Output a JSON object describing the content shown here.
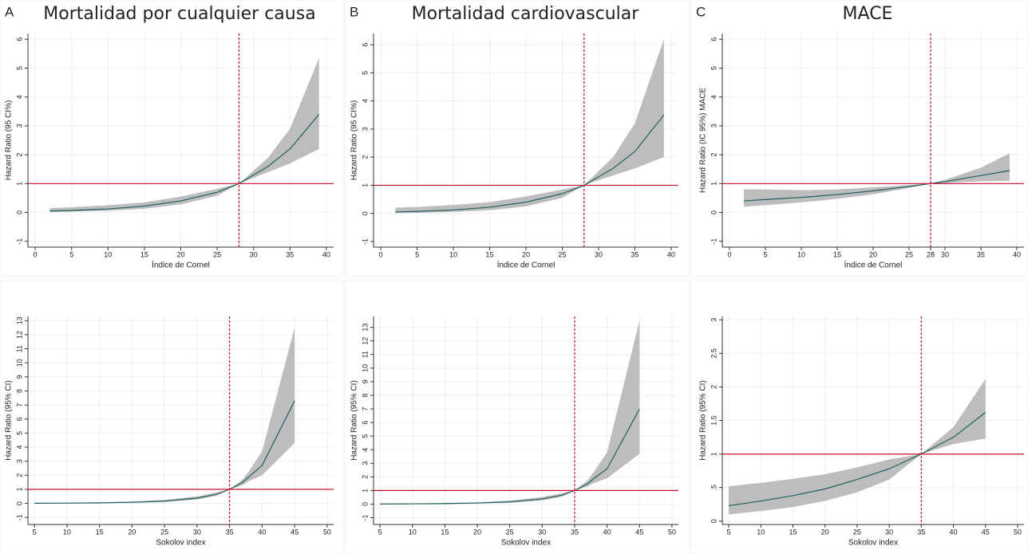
{
  "chart_data": [
    {
      "type": "line",
      "panel_label": "A",
      "title": "Mortalidad por cualquier causa",
      "x_label": "Índice de Cornel",
      "y_label": "Hazard Ratio (95 CI%)",
      "xlim": [
        -1,
        41
      ],
      "ylim": [
        -1.2,
        6.2
      ],
      "xticks": [
        0,
        5,
        10,
        15,
        20,
        25,
        30,
        35,
        40
      ],
      "yticks": [
        -1,
        0,
        1,
        2,
        3,
        4,
        5,
        6
      ],
      "grid": true,
      "hline": 1,
      "vline": 28,
      "ref_color": "#c8102e",
      "x": [
        2,
        5,
        10,
        15,
        20,
        25,
        28,
        30,
        32,
        35,
        39
      ],
      "series": [
        {
          "color": "#1f5f5b",
          "band_color": "#bdbdbd",
          "values": [
            0.05,
            0.07,
            0.12,
            0.22,
            0.4,
            0.7,
            1,
            1.3,
            1.6,
            2.2,
            3.4
          ],
          "lower": [
            0.02,
            0.03,
            0.06,
            0.13,
            0.28,
            0.58,
            1,
            1.2,
            1.4,
            1.7,
            2.2
          ],
          "upper": [
            0.15,
            0.18,
            0.25,
            0.35,
            0.55,
            0.82,
            1,
            1.45,
            1.9,
            2.9,
            5.35
          ]
        }
      ]
    },
    {
      "type": "line",
      "panel_label": "B",
      "title": "Mortalidad cardiovascular",
      "x_label": "Índice de Cornel",
      "y_label": "Hazard Ratio (95 CI%)",
      "xlim": [
        -1,
        41
      ],
      "ylim": [
        -1.2,
        6.4
      ],
      "xticks": [
        0,
        5,
        10,
        15,
        20,
        25,
        30,
        35,
        40
      ],
      "yticks": [
        -1,
        0,
        1,
        2,
        3,
        4,
        5,
        6
      ],
      "grid": true,
      "hline": 1,
      "vline": 28,
      "ref_color": "#c8102e",
      "x": [
        2,
        5,
        10,
        15,
        20,
        25,
        28,
        30,
        32,
        35,
        39
      ],
      "series": [
        {
          "color": "#1f5f5b",
          "band_color": "#bdbdbd",
          "values": [
            0.05,
            0.07,
            0.12,
            0.22,
            0.4,
            0.7,
            1,
            1.3,
            1.6,
            2.2,
            3.5
          ],
          "lower": [
            0.01,
            0.02,
            0.05,
            0.11,
            0.25,
            0.55,
            1,
            1.18,
            1.35,
            1.6,
            2.0
          ],
          "upper": [
            0.2,
            0.23,
            0.3,
            0.4,
            0.6,
            0.85,
            1,
            1.5,
            2.0,
            3.2,
            6.2
          ]
        }
      ]
    },
    {
      "type": "line",
      "panel_label": "C",
      "title": "MACE",
      "x_label": "Índice de Cornel",
      "y_label": "Hazard Ratio (IC 95%) MACE",
      "xlim": [
        -1,
        41
      ],
      "ylim": [
        -1.2,
        6.2
      ],
      "xticks": [
        0,
        5,
        10,
        15,
        20,
        25,
        28,
        30,
        35,
        40
      ],
      "yticks": [
        -1,
        0,
        1,
        2,
        3,
        4,
        5,
        6
      ],
      "grid": true,
      "hline": 1,
      "vline": 28,
      "ref_color": "#c8102e",
      "x": [
        2,
        5,
        10,
        15,
        20,
        25,
        28,
        30,
        35,
        39
      ],
      "series": [
        {
          "color": "#1f5f5b",
          "band_color": "#bdbdbd",
          "values": [
            0.4,
            0.45,
            0.52,
            0.62,
            0.75,
            0.9,
            1,
            1.07,
            1.28,
            1.45
          ],
          "lower": [
            0.2,
            0.25,
            0.35,
            0.47,
            0.63,
            0.85,
            1,
            1.02,
            1.08,
            1.1
          ],
          "upper": [
            0.8,
            0.8,
            0.77,
            0.8,
            0.87,
            0.95,
            1,
            1.13,
            1.55,
            2.05
          ]
        }
      ]
    },
    {
      "type": "line",
      "x_label": "Sokolov index",
      "y_label": "Hazard Ratio (95% CI)",
      "xlim": [
        4,
        51
      ],
      "ylim": [
        -1.5,
        13.3
      ],
      "xticks": [
        5,
        10,
        15,
        20,
        25,
        30,
        35,
        40,
        45,
        50
      ],
      "yticks": [
        -1,
        0,
        1,
        2,
        3,
        4,
        5,
        6,
        7,
        8,
        9,
        10,
        11,
        12,
        13
      ],
      "grid": true,
      "hline": 1,
      "vline": 35,
      "ref_color": "#c8102e",
      "x": [
        5,
        10,
        15,
        20,
        25,
        30,
        33,
        35,
        37,
        38,
        40,
        45
      ],
      "series": [
        {
          "color": "#1f5f5b",
          "band_color": "#bdbdbd",
          "values": [
            0.01,
            0.02,
            0.04,
            0.08,
            0.16,
            0.38,
            0.65,
            1,
            1.5,
            1.9,
            2.7,
            7.3
          ],
          "lower": [
            0,
            0.01,
            0.02,
            0.05,
            0.11,
            0.28,
            0.55,
            1,
            1.3,
            1.6,
            2.0,
            4.3
          ],
          "upper": [
            0.02,
            0.04,
            0.07,
            0.13,
            0.25,
            0.5,
            0.78,
            1,
            1.7,
            2.3,
            3.7,
            12.5
          ]
        }
      ]
    },
    {
      "type": "line",
      "x_label": "Sokolov index",
      "y_label": "Hazard Ratio (95% CI)",
      "xlim": [
        4,
        51
      ],
      "ylim": [
        -1.5,
        13.8
      ],
      "xticks": [
        5,
        10,
        15,
        20,
        25,
        30,
        35,
        40,
        45,
        50
      ],
      "yticks": [
        -1,
        0,
        1,
        2,
        3,
        4,
        5,
        6,
        7,
        8,
        9,
        10,
        11,
        12,
        13
      ],
      "grid": true,
      "hline": 1,
      "vline": 35,
      "ref_color": "#c8102e",
      "x": [
        5,
        10,
        15,
        20,
        25,
        30,
        33,
        35,
        37,
        38,
        40,
        45
      ],
      "series": [
        {
          "color": "#1f5f5b",
          "band_color": "#bdbdbd",
          "values": [
            0.01,
            0.02,
            0.04,
            0.08,
            0.16,
            0.38,
            0.65,
            1,
            1.5,
            1.9,
            2.6,
            7.0
          ],
          "lower": [
            0,
            0.01,
            0.02,
            0.05,
            0.1,
            0.27,
            0.54,
            1,
            1.3,
            1.55,
            1.9,
            3.7
          ],
          "upper": [
            0.02,
            0.04,
            0.07,
            0.13,
            0.26,
            0.52,
            0.8,
            1,
            1.75,
            2.4,
            3.8,
            13.5
          ]
        }
      ]
    },
    {
      "type": "line",
      "x_label": "Sokolov index",
      "y_label": "Hazard Ratio (95% CI)",
      "xlim": [
        4,
        51
      ],
      "ylim": [
        -0.05,
        3.05
      ],
      "xticks": [
        5,
        10,
        15,
        20,
        25,
        30,
        35,
        40,
        45,
        50
      ],
      "yticks": [
        0,
        {
          "value": 0.5,
          "label": ".5"
        },
        1,
        1.5,
        2,
        2.5,
        3
      ],
      "grid": true,
      "hline": 1,
      "vline": 35,
      "ref_color": "#c8102e",
      "x": [
        5,
        10,
        15,
        20,
        25,
        30,
        35,
        40,
        45
      ],
      "series": [
        {
          "color": "#1f5f5b",
          "band_color": "#bdbdbd",
          "values": [
            0.23,
            0.3,
            0.38,
            0.48,
            0.62,
            0.78,
            1,
            1.25,
            1.62
          ],
          "lower": [
            0.1,
            0.15,
            0.21,
            0.3,
            0.43,
            0.62,
            1,
            1.15,
            1.23
          ],
          "upper": [
            0.52,
            0.57,
            0.63,
            0.7,
            0.8,
            0.92,
            1,
            1.4,
            2.12
          ]
        }
      ]
    }
  ]
}
